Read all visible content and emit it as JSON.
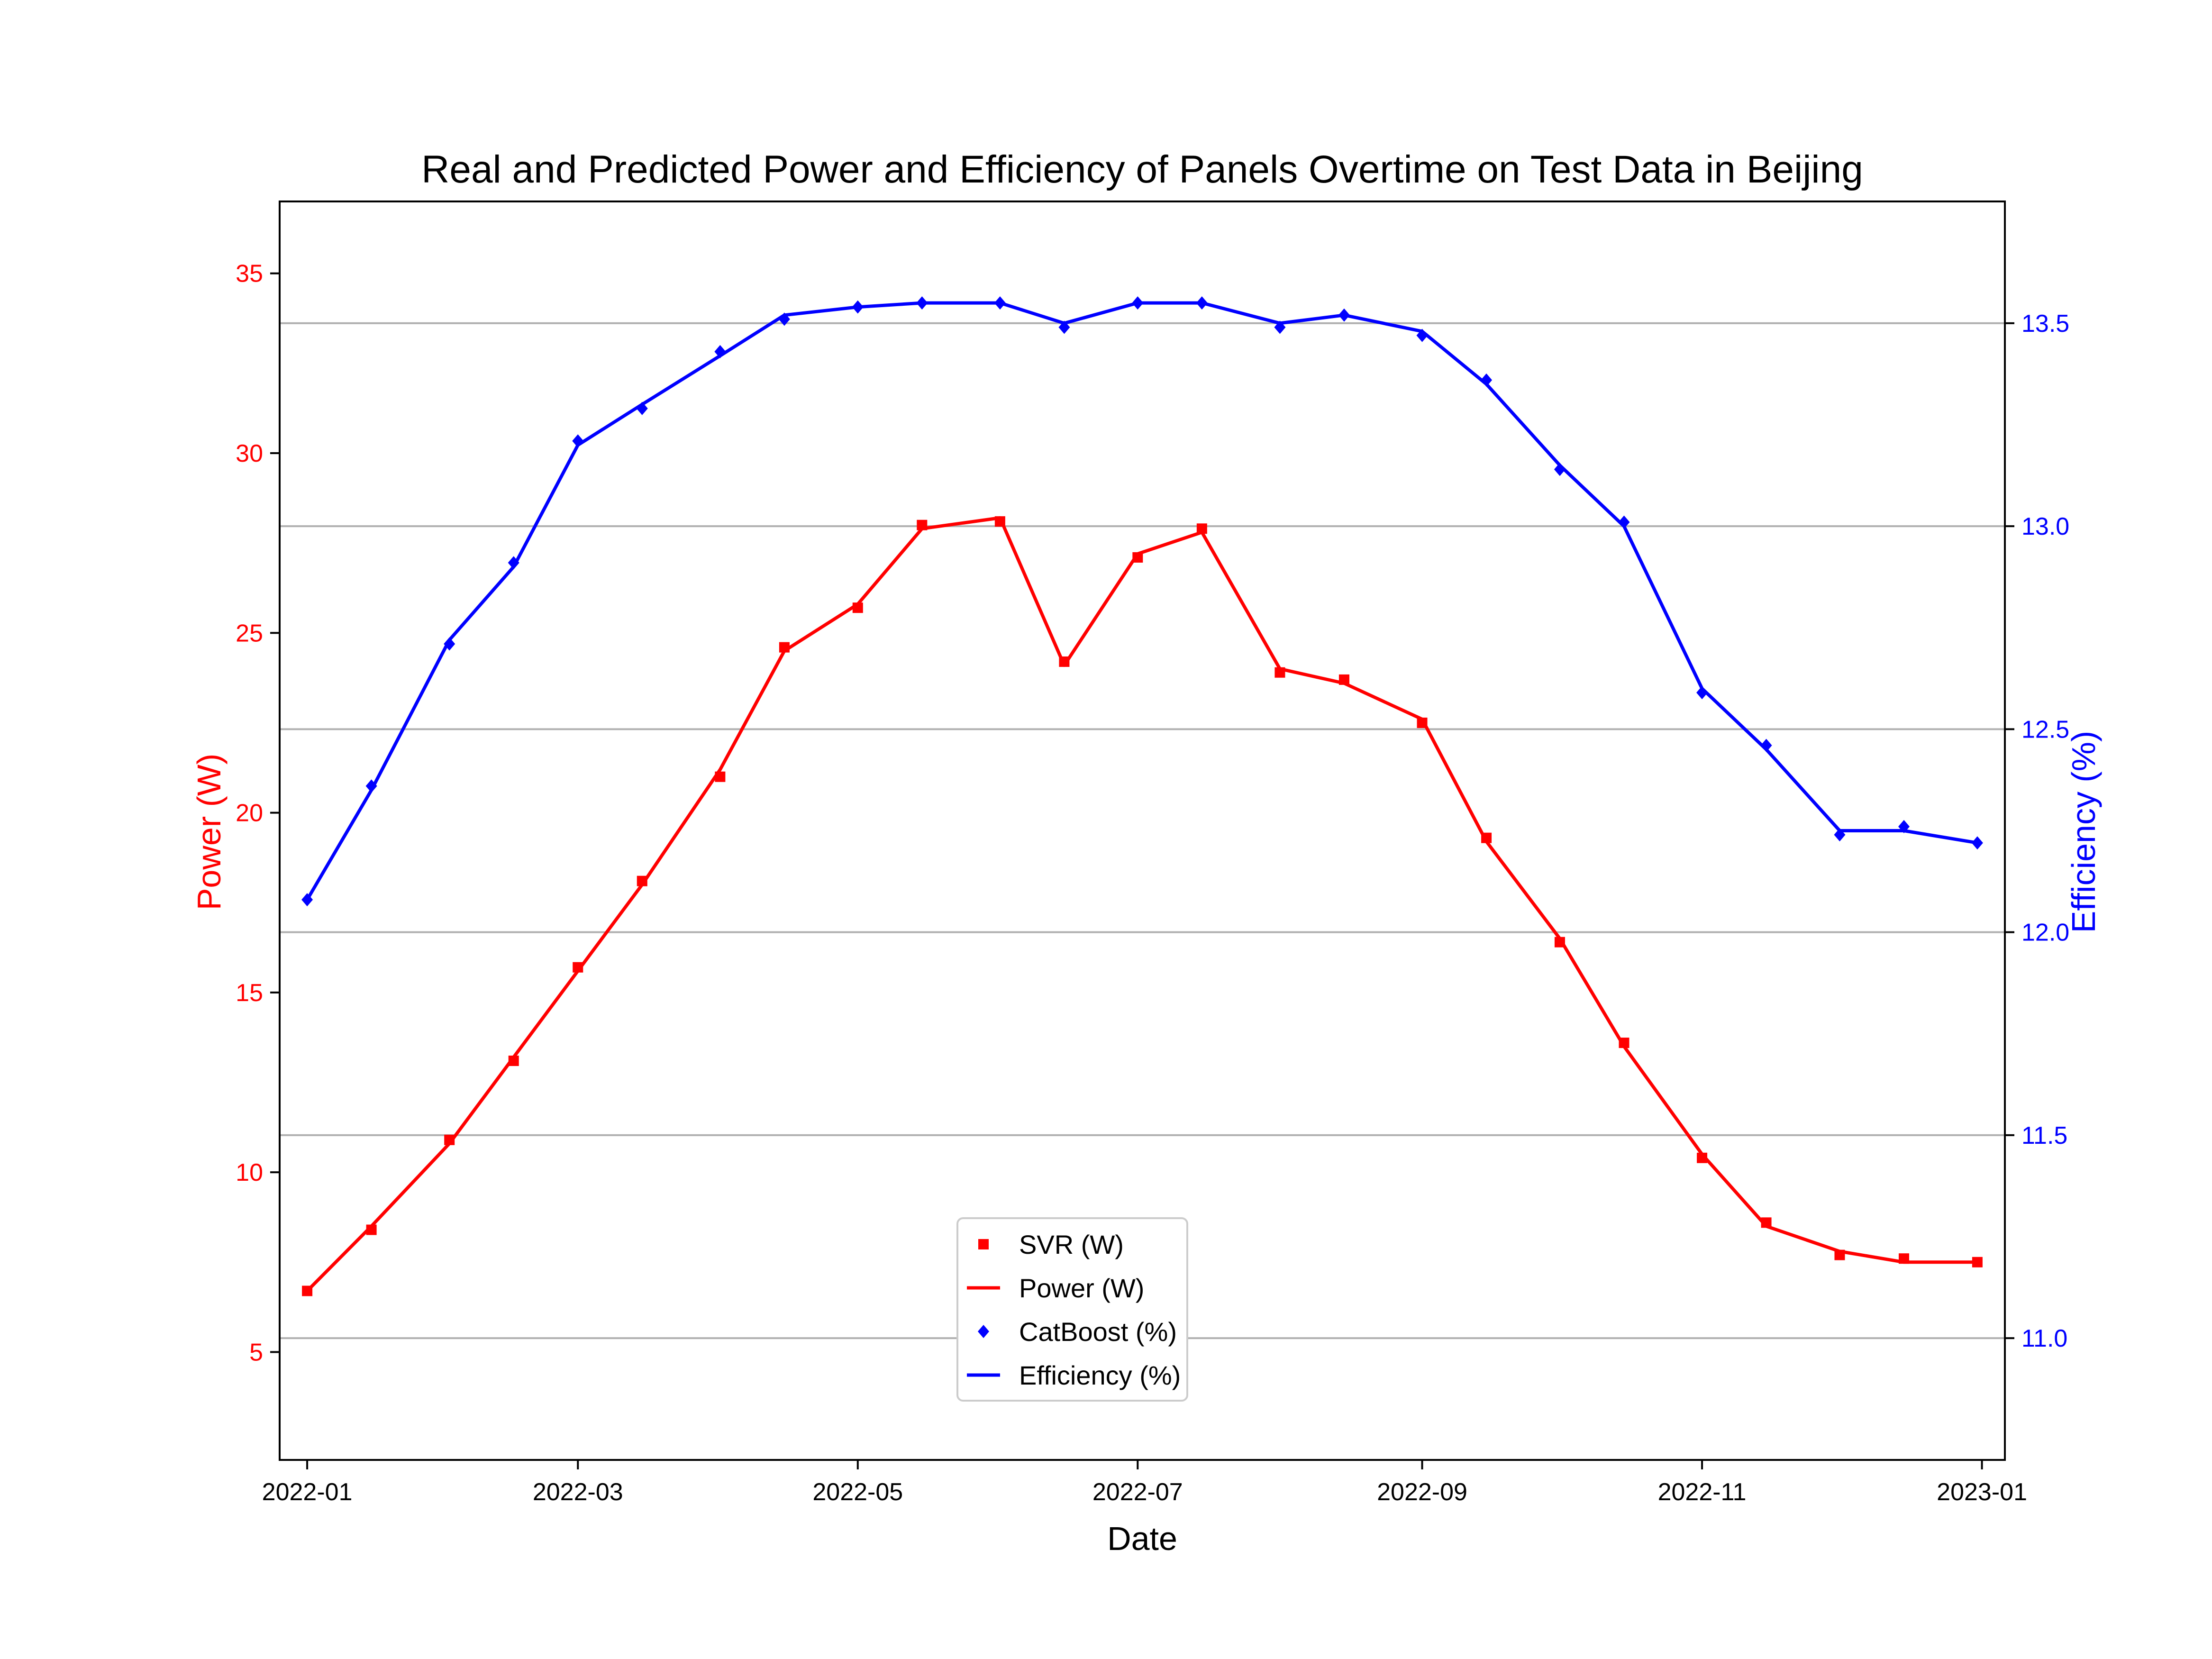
{
  "chart_data": {
    "type": "line",
    "title": "Real and Predicted Power and Efficiency of Panels Overtime on Test Data in Beijing",
    "xlabel": "Date",
    "ylabel_left": "Power (W)",
    "ylabel_right": "Efficiency (%)",
    "x_range": [
      "2021-12-26",
      "2023-01-06"
    ],
    "x_ticks": [
      "2022-01",
      "2022-03",
      "2022-05",
      "2022-07",
      "2022-09",
      "2022-11",
      "2023-01"
    ],
    "ylim_left": [
      2.0,
      37.0
    ],
    "ylim_right": [
      10.7,
      13.8
    ],
    "y_ticks_left": [
      "5",
      "10",
      "15",
      "20",
      "25",
      "30",
      "35"
    ],
    "y_ticks_right": [
      "11.0",
      "11.5",
      "12.0",
      "12.5",
      "13.0",
      "13.5"
    ],
    "grid": "horizontal lines at right-axis ticks",
    "legend_position": "lower center",
    "colors": {
      "power": "#ff0000",
      "efficiency": "#0000ff",
      "left_axis": "#ff0000",
      "right_axis": "#0000ff"
    },
    "legend": [
      {
        "label": "SVR (W)",
        "kind": "marker-square",
        "color": "#ff0000"
      },
      {
        "label": "Power (W)",
        "kind": "line",
        "color": "#ff0000"
      },
      {
        "label": "CatBoost (%)",
        "kind": "marker-diamond",
        "color": "#0000ff"
      },
      {
        "label": "Efficiency (%)",
        "kind": "line",
        "color": "#0000ff"
      }
    ],
    "series": [
      {
        "name": "Power (W)",
        "axis": "left",
        "x": [
          "2022-01-01",
          "2022-01-15",
          "2022-02-01",
          "2022-02-15",
          "2022-03-01",
          "2022-03-15",
          "2022-04-01",
          "2022-04-15",
          "2022-05-01",
          "2022-05-15",
          "2022-06-01",
          "2022-06-15",
          "2022-07-01",
          "2022-07-15",
          "2022-08-01",
          "2022-08-15",
          "2022-09-01",
          "2022-09-15",
          "2022-10-01",
          "2022-10-15",
          "2022-11-01",
          "2022-11-15",
          "2022-12-01",
          "2022-12-15",
          "2022-12-31"
        ],
        "values": [
          6.7,
          8.5,
          10.8,
          13.2,
          15.6,
          18.0,
          21.2,
          24.5,
          25.8,
          27.9,
          28.2,
          24.1,
          27.2,
          27.8,
          24.0,
          23.6,
          22.6,
          19.2,
          16.5,
          13.5,
          10.5,
          8.5,
          7.8,
          7.5,
          7.5
        ]
      },
      {
        "name": "SVR (W)",
        "axis": "left",
        "x": [
          "2022-01-01",
          "2022-01-15",
          "2022-02-01",
          "2022-02-15",
          "2022-03-01",
          "2022-03-15",
          "2022-04-01",
          "2022-04-15",
          "2022-05-01",
          "2022-05-15",
          "2022-06-01",
          "2022-06-15",
          "2022-07-01",
          "2022-07-15",
          "2022-08-01",
          "2022-08-15",
          "2022-09-01",
          "2022-09-15",
          "2022-10-01",
          "2022-10-15",
          "2022-11-01",
          "2022-11-15",
          "2022-12-01",
          "2022-12-15",
          "2022-12-31"
        ],
        "values": [
          6.7,
          8.4,
          10.9,
          13.1,
          15.7,
          18.1,
          21.0,
          24.6,
          25.7,
          28.0,
          28.1,
          24.2,
          27.1,
          27.9,
          23.9,
          23.7,
          22.5,
          19.3,
          16.4,
          13.6,
          10.4,
          8.6,
          7.7,
          7.6,
          7.5
        ]
      },
      {
        "name": "Efficiency (%)",
        "axis": "right",
        "x": [
          "2022-01-01",
          "2022-01-15",
          "2022-02-01",
          "2022-02-15",
          "2022-03-01",
          "2022-03-15",
          "2022-04-01",
          "2022-04-15",
          "2022-05-01",
          "2022-05-15",
          "2022-06-01",
          "2022-06-15",
          "2022-07-01",
          "2022-07-15",
          "2022-08-01",
          "2022-08-15",
          "2022-09-01",
          "2022-09-15",
          "2022-10-01",
          "2022-10-15",
          "2022-11-01",
          "2022-11-15",
          "2022-12-01",
          "2022-12-15",
          "2022-12-31"
        ],
        "values": [
          12.08,
          12.35,
          12.72,
          12.9,
          13.2,
          13.3,
          13.42,
          13.52,
          13.54,
          13.55,
          13.55,
          13.5,
          13.55,
          13.55,
          13.5,
          13.52,
          13.48,
          13.35,
          13.15,
          13.0,
          12.6,
          12.45,
          12.25,
          12.25,
          12.22
        ]
      },
      {
        "name": "CatBoost (%)",
        "axis": "right",
        "x": [
          "2022-01-01",
          "2022-01-15",
          "2022-02-01",
          "2022-02-15",
          "2022-03-01",
          "2022-03-15",
          "2022-04-01",
          "2022-04-15",
          "2022-05-01",
          "2022-05-15",
          "2022-06-01",
          "2022-06-15",
          "2022-07-01",
          "2022-07-15",
          "2022-08-01",
          "2022-08-15",
          "2022-09-01",
          "2022-09-15",
          "2022-10-01",
          "2022-10-15",
          "2022-11-01",
          "2022-11-15",
          "2022-12-01",
          "2022-12-15",
          "2022-12-31"
        ],
        "values": [
          12.08,
          12.36,
          12.71,
          12.91,
          13.21,
          13.29,
          13.43,
          13.51,
          13.54,
          13.55,
          13.55,
          13.49,
          13.55,
          13.55,
          13.49,
          13.52,
          13.47,
          13.36,
          13.14,
          13.01,
          12.59,
          12.46,
          12.24,
          12.26,
          12.22
        ]
      }
    ]
  }
}
